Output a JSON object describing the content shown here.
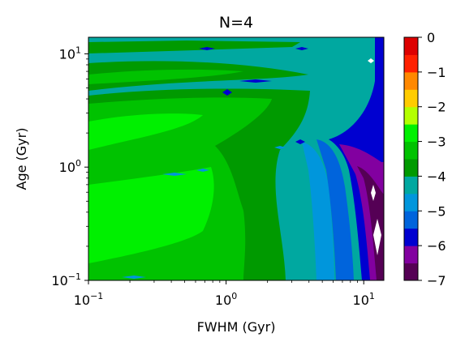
{
  "chart_data": {
    "type": "heatmap",
    "title": "N=4",
    "xlabel": "FWHM (Gyr)",
    "ylabel": "Age (Gyr)",
    "xscale": "log",
    "yscale": "log",
    "xlim": [
      0.1,
      14
    ],
    "ylim": [
      0.1,
      14
    ],
    "x_ticks": [
      {
        "base": "10",
        "exp": "−1",
        "value": 0.1
      },
      {
        "base": "10",
        "exp": "0",
        "value": 1
      },
      {
        "base": "10",
        "exp": "1",
        "value": 10
      }
    ],
    "y_ticks": [
      {
        "base": "10",
        "exp": "−1",
        "value": 0.1
      },
      {
        "base": "10",
        "exp": "0",
        "value": 1
      },
      {
        "base": "10",
        "exp": "1",
        "value": 10
      }
    ],
    "colorbar": {
      "levels": [
        -7,
        -6.5,
        -6,
        -5.5,
        -5,
        -4.5,
        -4,
        -3.5,
        -3,
        -2.5,
        -2,
        -1.5,
        -1,
        -0.5,
        0
      ],
      "colors": [
        "#550055",
        "#8200a0",
        "#0000d0",
        "#0064dc",
        "#0096dc",
        "#00a8a0",
        "#009a00",
        "#00c200",
        "#00f000",
        "#b4ff00",
        "#ffcc00",
        "#ff8800",
        "#ff2000",
        "#dd0000",
        "#cc3333"
      ],
      "tick_labels": [
        {
          "text": "0",
          "value": 0
        },
        {
          "text": "−1",
          "value": -1
        },
        {
          "text": "−2",
          "value": -2
        },
        {
          "text": "−3",
          "value": -3
        },
        {
          "text": "−4",
          "value": -4
        },
        {
          "text": "−5",
          "value": -5
        },
        {
          "text": "−6",
          "value": -6
        },
        {
          "text": "−7",
          "value": -7
        }
      ]
    },
    "regions": [
      {
        "band": "-4.5 to -4",
        "color": "#00a8a0",
        "description": "background teal"
      },
      {
        "band": "-4 to -3.5",
        "color": "#009a00",
        "description": "dark green bands"
      },
      {
        "band": "-3.5 to -3",
        "color": "#00c200",
        "description": "green bands"
      },
      {
        "band": "-3 to -2.5",
        "color": "#00f000",
        "description": "bright green lower-left"
      },
      {
        "band": "-5 to -4.5",
        "color": "#0096dc",
        "description": "light blue, large FWHM"
      },
      {
        "band": "-5.5 to -5",
        "color": "#0064dc",
        "description": "blue, large FWHM"
      },
      {
        "band": "-6 to -5.5",
        "color": "#0000d0",
        "description": "dark blue, upper right"
      },
      {
        "band": "-6.5 to -6",
        "color": "#8200a0",
        "description": "purple, right edge"
      },
      {
        "band": "-7 to -6.5",
        "color": "#550055",
        "description": "dark purple, right edge"
      }
    ]
  }
}
